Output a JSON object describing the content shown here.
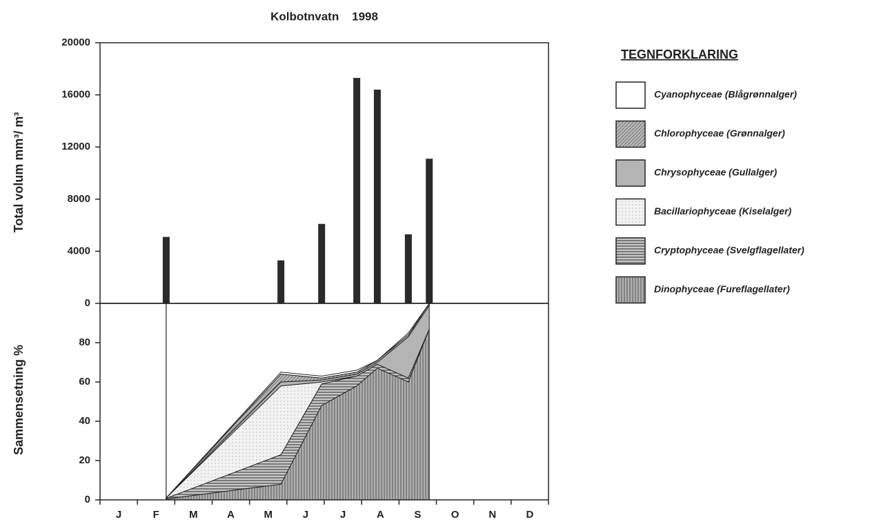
{
  "chart_data": [
    {
      "type": "bar",
      "title": "Kolbotnvatn    1998",
      "ylabel": "Total volum mm³/ m³",
      "x": [
        1.77,
        4.84,
        5.93,
        6.87,
        7.42,
        8.25,
        8.81
      ],
      "values": [
        5100,
        3300,
        6100,
        17300,
        16400,
        5300,
        11100
      ],
      "color": "#2a2a2a",
      "xlim": [
        0,
        12
      ],
      "ylim": [
        0,
        20000
      ],
      "yticks": [
        0,
        4000,
        8000,
        12000,
        16000,
        20000
      ]
    },
    {
      "type": "area",
      "stacked": true,
      "ylabel": "Sammensetning %",
      "legend_title": "TEGNFORKLARING",
      "categories": [
        "J",
        "F",
        "M",
        "A",
        "M",
        "J",
        "J",
        "A",
        "S",
        "O",
        "N",
        "D"
      ],
      "x": [
        1.77,
        4.84,
        5.93,
        6.87,
        7.42,
        8.25,
        8.81
      ],
      "xlim": [
        0,
        12
      ],
      "ylim": [
        0,
        100
      ],
      "yticks": [
        0,
        20,
        40,
        60,
        80
      ],
      "series": [
        {
          "name": "Cyanophyceae (Blågrønnalger)",
          "color": "#ffffff",
          "pattern": "solid",
          "values": [
            0,
            1,
            1,
            1,
            0,
            1,
            0
          ]
        },
        {
          "name": "Chlorophyceae (Grønnalger)",
          "color": "#9a9a9a",
          "pattern": "diagonal",
          "values": [
            0,
            4,
            1,
            1,
            1,
            1,
            1
          ]
        },
        {
          "name": "Chrysophyceae (Gullalger)",
          "color": "#b4b4b4",
          "pattern": "solid",
          "values": [
            0,
            2,
            1,
            1,
            1,
            21,
            12
          ]
        },
        {
          "name": "Bacillariophyceae (Kiselalger)",
          "color": "#ececec",
          "pattern": "dots",
          "values": [
            0.2,
            35,
            1,
            0,
            0,
            0,
            0
          ]
        },
        {
          "name": "Cryptophyceae (Svelgflagellater)",
          "color": "#8c8c8c",
          "pattern": "horizontal",
          "values": [
            0.3,
            15,
            11,
            5,
            2,
            2,
            0
          ]
        },
        {
          "name": "Dinophyceae (Fureflagellater)",
          "color": "#9c9c9c",
          "pattern": "vertical",
          "values": [
            0.5,
            8,
            48,
            58,
            67,
            60,
            87
          ]
        }
      ]
    }
  ]
}
